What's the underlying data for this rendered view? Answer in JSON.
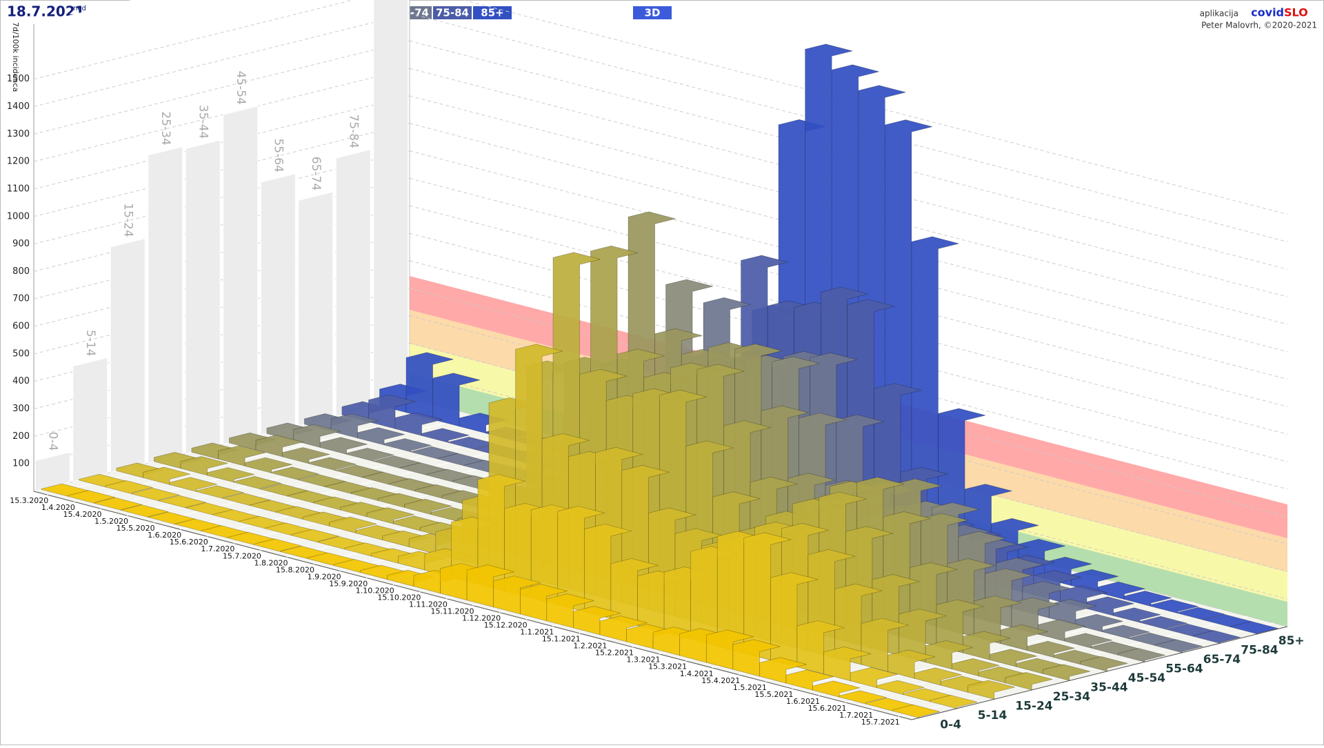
{
  "header": {
    "date": "18.7.2021",
    "weekday": "ned",
    "mode_button": "3D",
    "app_prefix": "aplikacija",
    "app_name_1": "covid",
    "app_name_2": "SLO",
    "credit": "Peter Malovrh, ©2020-2021"
  },
  "chart_data": {
    "type": "ribbon3d",
    "y_label": "7d/100k incidenca",
    "ylim": [
      0,
      1700
    ],
    "yticks": [
      100,
      200,
      300,
      400,
      500,
      600,
      700,
      800,
      900,
      1000,
      1100,
      1200,
      1300,
      1400,
      1500
    ],
    "grid": true,
    "x": [
      "15.3.2020",
      "1.4.2020",
      "15.4.2020",
      "1.5.2020",
      "15.5.2020",
      "1.6.2020",
      "15.6.2020",
      "1.7.2020",
      "15.7.2020",
      "1.8.2020",
      "15.8.2020",
      "1.9.2020",
      "15.9.2020",
      "1.10.2020",
      "15.10.2020",
      "1.11.2020",
      "15.11.2020",
      "1.12.2020",
      "15.12.2020",
      "1.1.2021",
      "15.1.2021",
      "1.2.2021",
      "15.2.2021",
      "1.3.2021",
      "15.3.2021",
      "1.4.2021",
      "15.4.2021",
      "1.5.2021",
      "15.5.2021",
      "1.6.2021",
      "15.6.2021",
      "1.7.2021",
      "15.7.2021"
    ],
    "age_groups": [
      "0-4",
      "5-14",
      "15-24",
      "25-34",
      "35-44",
      "45-54",
      "55-64",
      "65-74",
      "75-84",
      "85+"
    ],
    "back_wall_values": [
      110,
      420,
      820,
      1120,
      1110,
      1200,
      920,
      820,
      940,
      1700
    ],
    "series": [
      {
        "name": "0-4",
        "color": "#f2c500",
        "values": [
          2,
          3,
          2,
          1,
          0,
          0,
          1,
          2,
          3,
          2,
          3,
          4,
          8,
          15,
          40,
          90,
          110,
          95,
          90,
          80,
          60,
          50,
          45,
          60,
          80,
          100,
          90,
          50,
          30,
          15,
          5,
          3,
          4
        ]
      },
      {
        "name": "5-14",
        "color": "#e3c21c",
        "values": [
          3,
          5,
          3,
          1,
          0,
          0,
          1,
          2,
          4,
          3,
          5,
          10,
          25,
          60,
          200,
          380,
          300,
          320,
          340,
          300,
          200,
          180,
          220,
          320,
          400,
          420,
          300,
          150,
          80,
          30,
          8,
          4,
          5
        ]
      },
      {
        "name": "15-24*",
        "color": "#d2b92c",
        "values": [
          10,
          20,
          8,
          3,
          1,
          1,
          3,
          8,
          15,
          10,
          15,
          30,
          80,
          220,
          600,
          820,
          520,
          480,
          520,
          480,
          350,
          300,
          280,
          330,
          400,
          420,
          350,
          250,
          150,
          60,
          20,
          15,
          25
        ]
      },
      {
        "name": "25-34",
        "color": "#bcae3c",
        "values": [
          15,
          25,
          10,
          3,
          1,
          1,
          4,
          10,
          15,
          10,
          12,
          25,
          70,
          220,
          700,
          1120,
          720,
          650,
          700,
          720,
          560,
          400,
          300,
          380,
          450,
          500,
          400,
          250,
          150,
          60,
          20,
          15,
          20
        ]
      },
      {
        "name": "35-44",
        "color": "#aaa24c",
        "values": [
          15,
          30,
          12,
          3,
          1,
          1,
          4,
          8,
          12,
          8,
          10,
          20,
          60,
          200,
          680,
          1110,
          760,
          700,
          760,
          780,
          600,
          420,
          320,
          400,
          480,
          520,
          420,
          260,
          150,
          60,
          20,
          12,
          15
        ]
      },
      {
        "name": "45-54",
        "color": "#9a975f",
        "values": [
          18,
          35,
          15,
          4,
          1,
          1,
          3,
          6,
          10,
          7,
          8,
          15,
          50,
          180,
          640,
          1200,
          800,
          750,
          800,
          820,
          620,
          400,
          300,
          380,
          440,
          480,
          380,
          240,
          130,
          50,
          15,
          8,
          10
        ]
      },
      {
        "name": "55-64",
        "color": "#8a8b78",
        "values": [
          20,
          40,
          18,
          4,
          1,
          1,
          3,
          5,
          8,
          6,
          6,
          12,
          40,
          150,
          520,
          920,
          680,
          660,
          720,
          740,
          560,
          340,
          240,
          300,
          340,
          360,
          280,
          170,
          90,
          35,
          10,
          5,
          6
        ]
      },
      {
        "name": "65-74",
        "color": "#6e7690",
        "values": [
          20,
          45,
          20,
          5,
          1,
          1,
          2,
          4,
          6,
          5,
          5,
          10,
          30,
          120,
          420,
          820,
          640,
          640,
          700,
          720,
          520,
          300,
          180,
          200,
          220,
          200,
          150,
          90,
          50,
          20,
          6,
          3,
          4
        ]
      },
      {
        "name": "75-84",
        "color": "#4c5ca8",
        "values": [
          30,
          80,
          40,
          8,
          2,
          1,
          2,
          4,
          5,
          4,
          4,
          8,
          30,
          120,
          450,
          940,
          800,
          820,
          900,
          880,
          600,
          320,
          160,
          150,
          130,
          100,
          70,
          40,
          25,
          10,
          4,
          2,
          3
        ]
      },
      {
        "name": "85+",
        "color": "#3350c2",
        "values": [
          60,
          200,
          150,
          30,
          5,
          2,
          2,
          3,
          4,
          4,
          4,
          8,
          40,
          200,
          700,
          1400,
          1700,
          1650,
          1600,
          1500,
          1100,
          500,
          250,
          150,
          100,
          60,
          40,
          20,
          12,
          6,
          3,
          2,
          2
        ]
      }
    ]
  }
}
